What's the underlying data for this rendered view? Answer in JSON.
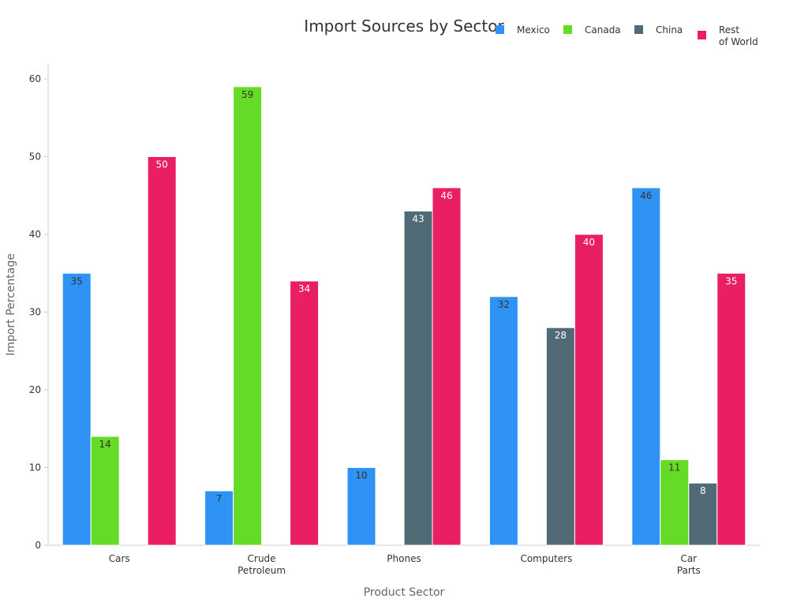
{
  "chart_data": {
    "type": "bar",
    "title": "Import Sources by Sector",
    "xlabel": "Product Sector",
    "ylabel": "Import Percentage",
    "ylim": [
      0,
      60
    ],
    "yticks": [
      0,
      10,
      20,
      30,
      40,
      50,
      60
    ],
    "grid": false,
    "legend_placement": "top-right",
    "categories": [
      [
        "Cars"
      ],
      [
        "Crude",
        "Petroleum"
      ],
      [
        "Phones"
      ],
      [
        "Computers"
      ],
      [
        "Car",
        "Parts"
      ]
    ],
    "series": [
      {
        "name": [
          "Mexico"
        ],
        "color": "#2e93f5",
        "label_color": "#333333",
        "values": [
          35,
          7,
          10,
          32,
          46
        ]
      },
      {
        "name": [
          "Canada"
        ],
        "color": "#66db26",
        "label_color": "#333333",
        "values": [
          14,
          59,
          null,
          null,
          11
        ]
      },
      {
        "name": [
          "China"
        ],
        "color": "#516b76",
        "label_color": "#ffffff",
        "values": [
          null,
          null,
          43,
          28,
          8
        ]
      },
      {
        "name": [
          "Rest",
          "of World"
        ],
        "color": "#e91e63",
        "label_color": "#ffffff",
        "values": [
          50,
          34,
          46,
          40,
          35
        ]
      }
    ]
  }
}
